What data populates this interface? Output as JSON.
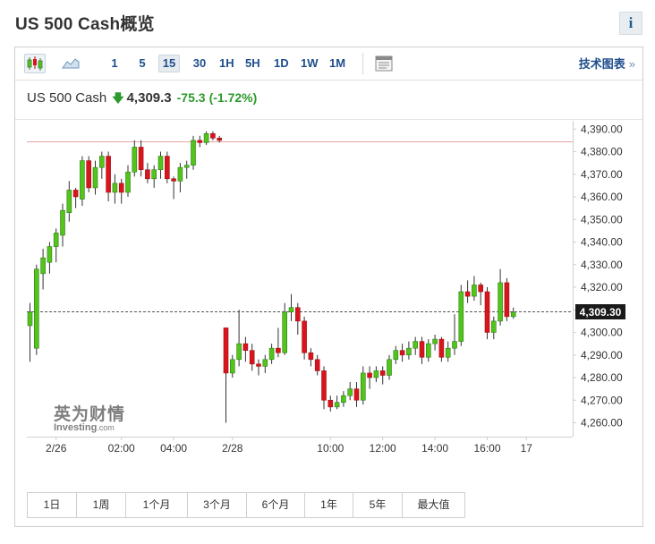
{
  "header": {
    "title": "US 500 Cash概览",
    "info_label": "i"
  },
  "toolbar": {
    "icons": [
      "candlestick-icon",
      "area-chart-icon"
    ],
    "timeframes": [
      "1",
      "5",
      "15",
      "30",
      "1H",
      "5H",
      "1D",
      "1W",
      "1M"
    ],
    "active_timeframe": "15",
    "layout_icon": "layout-icon",
    "advanced_label": "技术图表",
    "advanced_arrow": "»"
  },
  "quote": {
    "name": "US 500 Cash",
    "direction": "down",
    "price": "4,309.3",
    "change": "-75.3",
    "change_pct": "(-1.72%)"
  },
  "watermark": {
    "cn": "英为财情",
    "en": "Investing",
    "en_suffix": ".com"
  },
  "chart_data": {
    "type": "candlestick",
    "ylim": [
      4256,
      4392
    ],
    "y_ticks": [
      "4,260.00",
      "4,270.00",
      "4,280.00",
      "4,290.00",
      "4,300.00",
      "4,310.00",
      "4,320.00",
      "4,330.00",
      "4,340.00",
      "4,350.00",
      "4,360.00",
      "4,370.00",
      "4,380.00",
      "4,390.00"
    ],
    "x_ticks": [
      {
        "label": "2/26",
        "index": 4
      },
      {
        "label": "02:00",
        "index": 14
      },
      {
        "label": "04:00",
        "index": 22
      },
      {
        "label": "2/28",
        "index": 31
      },
      {
        "label": "10:00",
        "index": 46
      },
      {
        "label": "12:00",
        "index": 54
      },
      {
        "label": "14:00",
        "index": 62
      },
      {
        "label": "16:00",
        "index": 70
      },
      {
        "label": "17",
        "index": 76
      }
    ],
    "last_price_label": "4,309.30",
    "last_price": 4309.3,
    "reference_line": 4384.6,
    "up_color": "#52c41a",
    "down_color": "#d9141e",
    "candles": [
      [
        4303,
        4309,
        4287,
        4313
      ],
      [
        4293,
        4328,
        4290,
        4330
      ],
      [
        4326,
        4333,
        4319,
        4337
      ],
      [
        4331,
        4338,
        4326,
        4340
      ],
      [
        4338,
        4344,
        4331,
        4346
      ],
      [
        4343,
        4354,
        4338,
        4357
      ],
      [
        4353,
        4363,
        4349,
        4367
      ],
      [
        4363,
        4360,
        4355,
        4364
      ],
      [
        4359,
        4376,
        4356,
        4378
      ],
      [
        4376,
        4364,
        4362,
        4378
      ],
      [
        4364,
        4373,
        4361,
        4376
      ],
      [
        4373,
        4378,
        4368,
        4380
      ],
      [
        4378,
        4362,
        4358,
        4380
      ],
      [
        4362,
        4366,
        4357,
        4370
      ],
      [
        4366,
        4362,
        4357,
        4368
      ],
      [
        4362,
        4371,
        4360,
        4374
      ],
      [
        4371,
        4382,
        4369,
        4385
      ],
      [
        4382,
        4372,
        4369,
        4385
      ],
      [
        4372,
        4368,
        4366,
        4375
      ],
      [
        4368,
        4372,
        4364,
        4374
      ],
      [
        4372,
        4378,
        4368,
        4380
      ],
      [
        4378,
        4368,
        4366,
        4380
      ],
      [
        4368,
        4367,
        4359,
        4369
      ],
      [
        4367,
        4373,
        4362,
        4375
      ],
      [
        4373,
        4374,
        4368,
        4376
      ],
      [
        4374,
        4385,
        4372,
        4387
      ],
      [
        4385,
        4384,
        4382,
        4387
      ],
      [
        4384,
        4388,
        4383,
        4389
      ],
      [
        4388,
        4386,
        4385,
        4389
      ],
      [
        4386,
        4385,
        4384,
        4387
      ],
      [
        4302,
        4282,
        4260,
        4302
      ],
      [
        4282,
        4288,
        4280,
        4290
      ],
      [
        4288,
        4295,
        4285,
        4310
      ],
      [
        4295,
        4292,
        4287,
        4298
      ],
      [
        4292,
        4286,
        4283,
        4295
      ],
      [
        4286,
        4285,
        4281,
        4288
      ],
      [
        4285,
        4288,
        4282,
        4290
      ],
      [
        4288,
        4293,
        4286,
        4295
      ],
      [
        4293,
        4291,
        4289,
        4302
      ],
      [
        4291,
        4309,
        4290,
        4313
      ],
      [
        4309,
        4311,
        4305,
        4317
      ],
      [
        4311,
        4305,
        4299,
        4313
      ],
      [
        4305,
        4291,
        4288,
        4307
      ],
      [
        4291,
        4288,
        4285,
        4293
      ],
      [
        4288,
        4283,
        4281,
        4290
      ],
      [
        4283,
        4270,
        4266,
        4285
      ],
      [
        4270,
        4267,
        4265,
        4272
      ],
      [
        4267,
        4269,
        4266,
        4272
      ],
      [
        4269,
        4272,
        4267,
        4274
      ],
      [
        4272,
        4275,
        4270,
        4278
      ],
      [
        4275,
        4270,
        4267,
        4278
      ],
      [
        4270,
        4282,
        4268,
        4285
      ],
      [
        4282,
        4280,
        4275,
        4285
      ],
      [
        4280,
        4283,
        4278,
        4285
      ],
      [
        4283,
        4281,
        4277,
        4285
      ],
      [
        4281,
        4288,
        4279,
        4290
      ],
      [
        4288,
        4292,
        4286,
        4294
      ],
      [
        4292,
        4290,
        4287,
        4295
      ],
      [
        4290,
        4293,
        4288,
        4296
      ],
      [
        4293,
        4296,
        4290,
        4298
      ],
      [
        4296,
        4289,
        4286,
        4298
      ],
      [
        4289,
        4295,
        4287,
        4297
      ],
      [
        4295,
        4297,
        4292,
        4299
      ],
      [
        4297,
        4289,
        4287,
        4298
      ],
      [
        4289,
        4293,
        4287,
        4296
      ],
      [
        4293,
        4296,
        4290,
        4308
      ],
      [
        4296,
        4318,
        4294,
        4321
      ],
      [
        4318,
        4316,
        4313,
        4323
      ],
      [
        4316,
        4321,
        4314,
        4325
      ],
      [
        4321,
        4318,
        4312,
        4322
      ],
      [
        4318,
        4300,
        4297,
        4320
      ],
      [
        4300,
        4305,
        4297,
        4307
      ],
      [
        4305,
        4322,
        4303,
        4328
      ],
      [
        4322,
        4307,
        4305,
        4324
      ],
      [
        4307,
        4309,
        4306,
        4311
      ]
    ]
  },
  "range_tabs": [
    "1日",
    "1周",
    "1个月",
    "3个月",
    "6个月",
    "1年",
    "5年",
    "最大值"
  ]
}
